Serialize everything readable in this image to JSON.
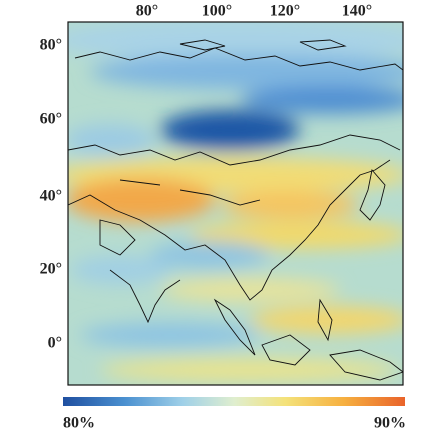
{
  "map": {
    "longitude_labels": [
      "80°",
      "100°",
      "120°",
      "140°"
    ],
    "latitude_labels": [
      "80°",
      "60°",
      "40°",
      "20°",
      "0°"
    ],
    "colorbar": {
      "min_label": "80%",
      "max_label": "90%"
    }
  }
}
